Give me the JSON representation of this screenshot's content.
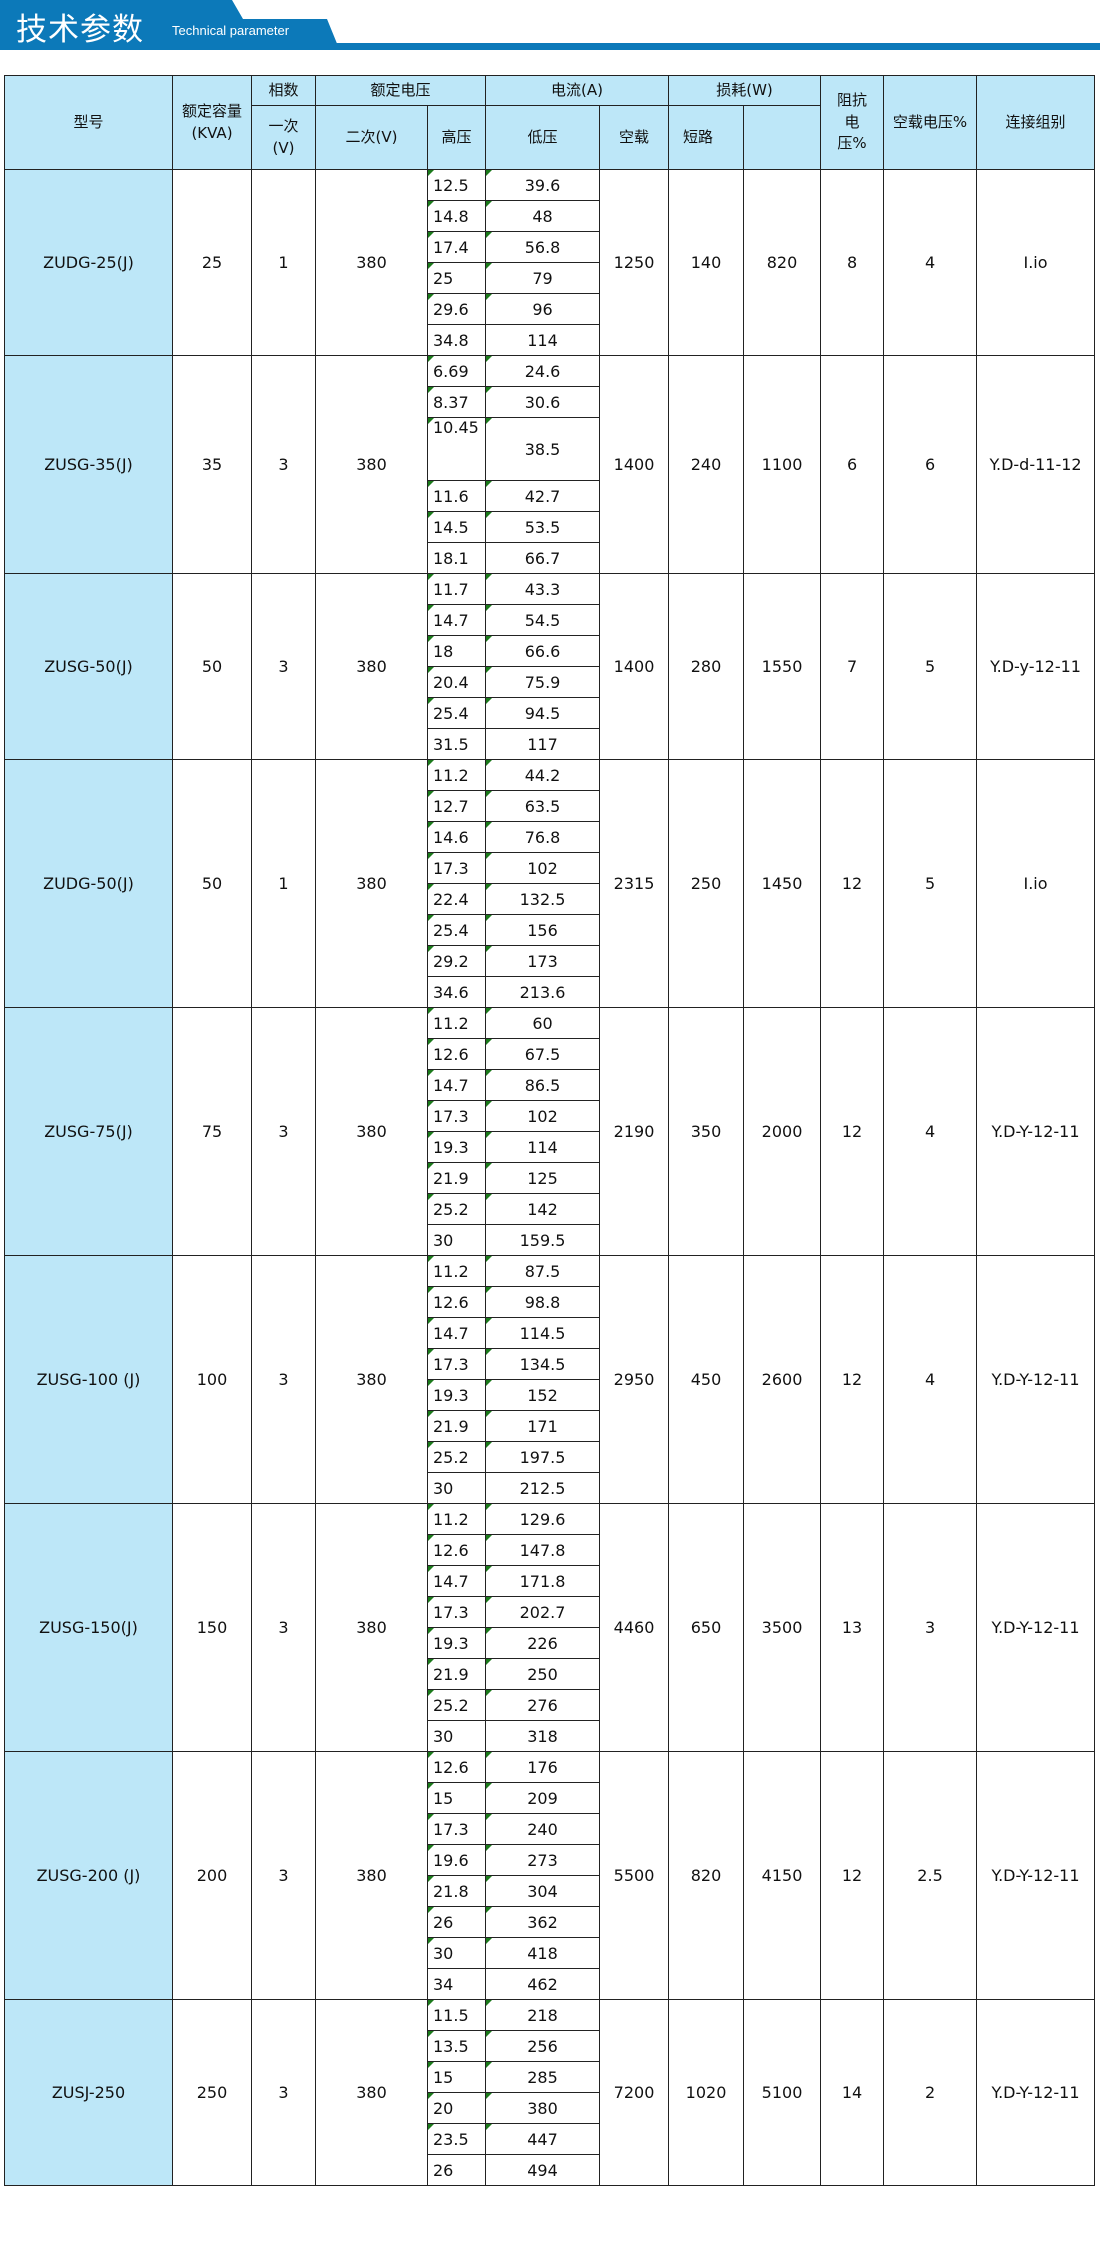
{
  "header": {
    "title_cn": "技术参数",
    "title_en": "Technical parameter",
    "accent_color": "#0c79b9",
    "cell_highlight_color": "#bde7f8"
  },
  "table": {
    "headers": {
      "model": "型号",
      "capacity": "额定容量(KVA)",
      "phases": "相数",
      "rated_voltage": "额定电压",
      "current": "电流(A)",
      "loss": "损耗(W)",
      "impedance": "阻抗电压%",
      "noload_voltage": "空载电压%",
      "connection": "连接组别",
      "primary": "一次(V)",
      "secondary": "二次(V)",
      "high_voltage": "高压",
      "low_voltage": "低压",
      "noload": "空载",
      "short_circuit": "短路"
    },
    "rows": [
      {
        "model": "ZUDG-25(J)",
        "capacity": "25",
        "phases": "1",
        "secondary": "380",
        "noload": "1250",
        "loss_a": "140",
        "loss_b": "820",
        "impedance": "8",
        "noload_voltage": "4",
        "connection": "I.io",
        "sub": [
          [
            "12.5",
            "39.6"
          ],
          [
            "14.8",
            "48"
          ],
          [
            "17.4",
            "56.8"
          ],
          [
            "25",
            "79"
          ],
          [
            "29.6",
            "96"
          ],
          [
            "34.8",
            "114"
          ]
        ]
      },
      {
        "model": "ZUSG-35(J)",
        "capacity": "35",
        "phases": "3",
        "secondary": "380",
        "noload": "1400",
        "loss_a": "240",
        "loss_b": "1100",
        "impedance": "6",
        "noload_voltage": "6",
        "connection": "Y.D-d-11-12",
        "sub": [
          [
            "6.69",
            "24.6"
          ],
          [
            "8.37",
            "30.6"
          ],
          [
            "10.45",
            "38.5"
          ],
          [
            "11.6",
            "42.7"
          ],
          [
            "14.5",
            "53.5"
          ],
          [
            "18.1",
            "66.7"
          ]
        ]
      },
      {
        "model": "ZUSG-50(J)",
        "capacity": "50",
        "phases": "3",
        "secondary": "380",
        "noload": "1400",
        "loss_a": "280",
        "loss_b": "1550",
        "impedance": "7",
        "noload_voltage": "5",
        "connection": "Y.D-y-12-11",
        "sub": [
          [
            "11.7",
            "43.3"
          ],
          [
            "14.7",
            "54.5"
          ],
          [
            "18",
            "66.6"
          ],
          [
            "20.4",
            "75.9"
          ],
          [
            "25.4",
            "94.5"
          ],
          [
            "31.5",
            "117"
          ]
        ]
      },
      {
        "model": "ZUDG-50(J)",
        "capacity": "50",
        "phases": "1",
        "secondary": "380",
        "noload": "2315",
        "loss_a": "250",
        "loss_b": "1450",
        "impedance": "12",
        "noload_voltage": "5",
        "connection": "I.io",
        "sub": [
          [
            "11.2",
            "44.2"
          ],
          [
            "12.7",
            "63.5"
          ],
          [
            "14.6",
            "76.8"
          ],
          [
            "17.3",
            "102"
          ],
          [
            "22.4",
            "132.5"
          ],
          [
            "25.4",
            "156"
          ],
          [
            "29.2",
            "173"
          ],
          [
            "34.6",
            "213.6"
          ]
        ]
      },
      {
        "model": "ZUSG-75(J)",
        "capacity": "75",
        "phases": "3",
        "secondary": "380",
        "noload": "2190",
        "loss_a": "350",
        "loss_b": "2000",
        "impedance": "12",
        "noload_voltage": "4",
        "connection": "Y.D-Y-12-11",
        "sub": [
          [
            "11.2",
            "60"
          ],
          [
            "12.6",
            "67.5"
          ],
          [
            "14.7",
            "86.5"
          ],
          [
            "17.3",
            "102"
          ],
          [
            "19.3",
            "114"
          ],
          [
            "21.9",
            "125"
          ],
          [
            "25.2",
            "142"
          ],
          [
            "30",
            "159.5"
          ]
        ]
      },
      {
        "model": "ZUSG-100 (J)",
        "capacity": "100",
        "phases": "3",
        "secondary": "380",
        "noload": "2950",
        "loss_a": "450",
        "loss_b": "2600",
        "impedance": "12",
        "noload_voltage": "4",
        "connection": "Y.D-Y-12-11",
        "sub": [
          [
            "11.2",
            "87.5"
          ],
          [
            "12.6",
            "98.8"
          ],
          [
            "14.7",
            "114.5"
          ],
          [
            "17.3",
            "134.5"
          ],
          [
            "19.3",
            "152"
          ],
          [
            "21.9",
            "171"
          ],
          [
            "25.2",
            "197.5"
          ],
          [
            "30",
            "212.5"
          ]
        ]
      },
      {
        "model": "ZUSG-150(J)",
        "capacity": "150",
        "phases": "3",
        "secondary": "380",
        "noload": "4460",
        "loss_a": "650",
        "loss_b": "3500",
        "impedance": "13",
        "noload_voltage": "3",
        "connection": "Y.D-Y-12-11",
        "sub": [
          [
            "11.2",
            "129.6"
          ],
          [
            "12.6",
            "147.8"
          ],
          [
            "14.7",
            "171.8"
          ],
          [
            "17.3",
            "202.7"
          ],
          [
            "19.3",
            "226"
          ],
          [
            "21.9",
            "250"
          ],
          [
            "25.2",
            "276"
          ],
          [
            "30",
            "318"
          ]
        ]
      },
      {
        "model": "ZUSG-200 (J)",
        "capacity": "200",
        "phases": "3",
        "secondary": "380",
        "noload": "5500",
        "loss_a": "820",
        "loss_b": "4150",
        "impedance": "12",
        "noload_voltage": "2.5",
        "connection": "Y.D-Y-12-11",
        "sub": [
          [
            "12.6",
            "176"
          ],
          [
            "15",
            "209"
          ],
          [
            "17.3",
            "240"
          ],
          [
            "19.6",
            "273"
          ],
          [
            "21.8",
            "304"
          ],
          [
            "26",
            "362"
          ],
          [
            "30",
            "418"
          ],
          [
            "34",
            "462"
          ]
        ]
      },
      {
        "model": "ZUSJ-250",
        "capacity": "250",
        "phases": "3",
        "secondary": "380",
        "noload": "7200",
        "loss_a": "1020",
        "loss_b": "5100",
        "impedance": "14",
        "noload_voltage": "2",
        "connection": "Y.D-Y-12-11",
        "sub": [
          [
            "11.5",
            "218"
          ],
          [
            "13.5",
            "256"
          ],
          [
            "15",
            "285"
          ],
          [
            "20",
            "380"
          ],
          [
            "23.5",
            "447"
          ],
          [
            "26",
            "494"
          ]
        ]
      }
    ]
  }
}
